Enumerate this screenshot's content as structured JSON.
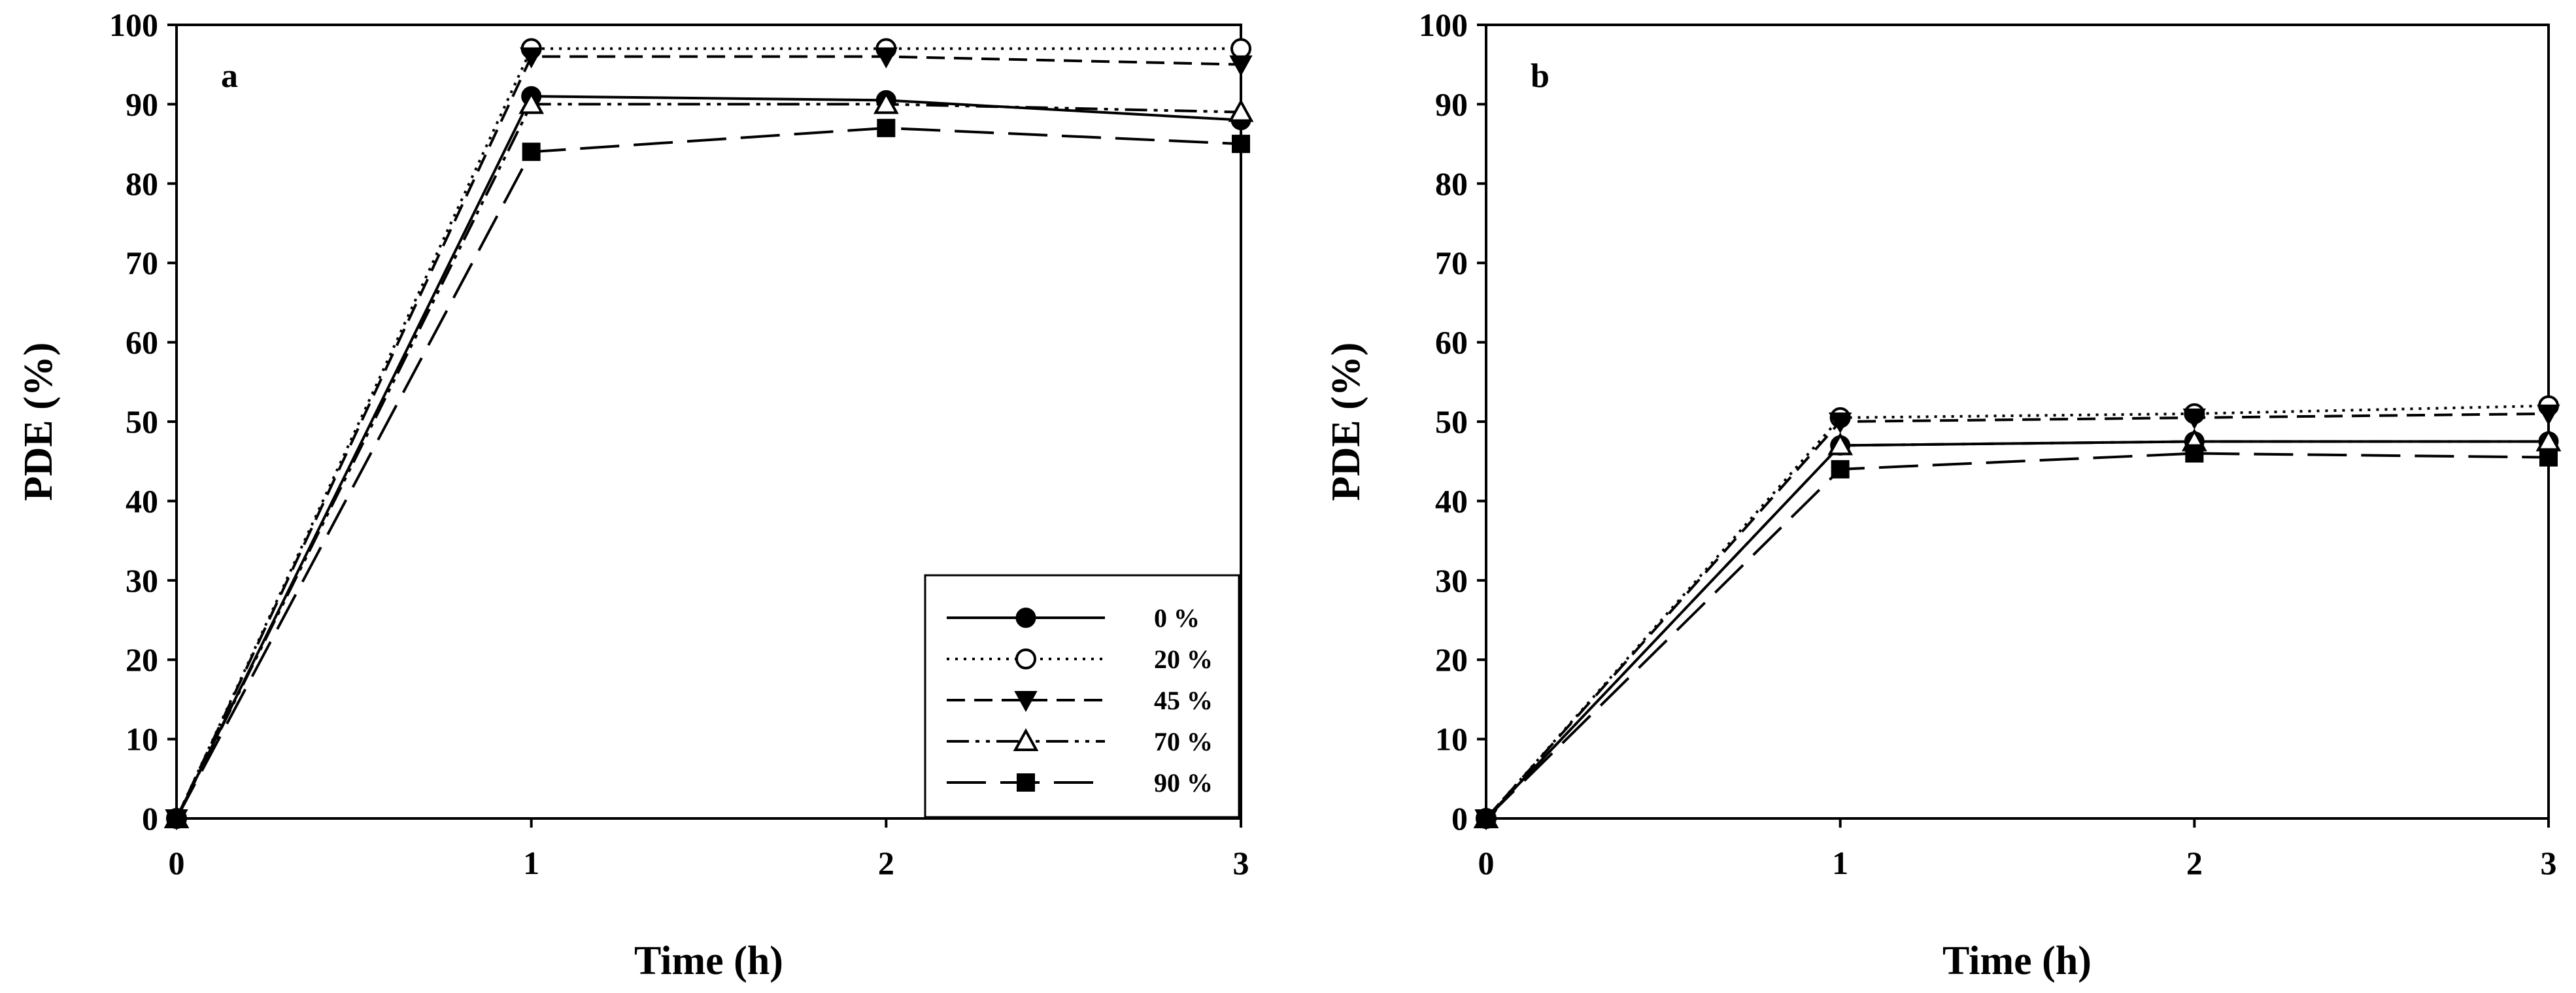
{
  "chart_data": [
    {
      "type": "line",
      "panel_label": "a",
      "xlabel": "Time (h)",
      "ylabel": "PDE (%)",
      "xlim": [
        0,
        3
      ],
      "ylim": [
        0,
        100
      ],
      "xticks": [
        0,
        1,
        2,
        3
      ],
      "yticks": [
        0,
        10,
        20,
        30,
        40,
        50,
        60,
        70,
        80,
        90,
        100
      ],
      "grid": false,
      "legend_position": "bottom-right",
      "x": [
        0,
        1,
        2,
        3
      ],
      "series": [
        {
          "name": "0 %",
          "values": [
            0,
            91,
            90.5,
            88
          ],
          "marker": "filled-circle",
          "line": "solid"
        },
        {
          "name": "20 %",
          "values": [
            0,
            97,
            97,
            97
          ],
          "marker": "open-circle",
          "line": "dotted"
        },
        {
          "name": "45 %",
          "values": [
            0,
            96,
            96,
            95
          ],
          "marker": "filled-triangle-down",
          "line": "dashed"
        },
        {
          "name": "70 %",
          "values": [
            0,
            90,
            90,
            89
          ],
          "marker": "open-triangle-up",
          "line": "dash-dot-dot"
        },
        {
          "name": "90 %",
          "values": [
            0,
            84,
            87,
            85
          ],
          "marker": "filled-square",
          "line": "long-dash"
        }
      ]
    },
    {
      "type": "line",
      "panel_label": "b",
      "xlabel": "Time (h)",
      "ylabel": "PDE (%)",
      "xlim": [
        0,
        3
      ],
      "ylim": [
        0,
        100
      ],
      "xticks": [
        0,
        1,
        2,
        3
      ],
      "yticks": [
        0,
        10,
        20,
        30,
        40,
        50,
        60,
        70,
        80,
        90,
        100
      ],
      "grid": false,
      "x": [
        0,
        1,
        2,
        3
      ],
      "series": [
        {
          "name": "0 %",
          "values": [
            0,
            47,
            47.5,
            47.5
          ],
          "marker": "filled-circle",
          "line": "solid"
        },
        {
          "name": "20 %",
          "values": [
            0,
            50.5,
            51,
            52
          ],
          "marker": "open-circle",
          "line": "dotted"
        },
        {
          "name": "45 %",
          "values": [
            0,
            50,
            50.5,
            51
          ],
          "marker": "filled-triangle-down",
          "line": "dashed"
        },
        {
          "name": "70 %",
          "values": [
            0,
            47,
            47.5,
            47.5
          ],
          "marker": "open-triangle-up",
          "line": "dash-dot-dot"
        },
        {
          "name": "90 %",
          "values": [
            0,
            44,
            46,
            45.5
          ],
          "marker": "filled-square",
          "line": "long-dash"
        }
      ]
    }
  ]
}
